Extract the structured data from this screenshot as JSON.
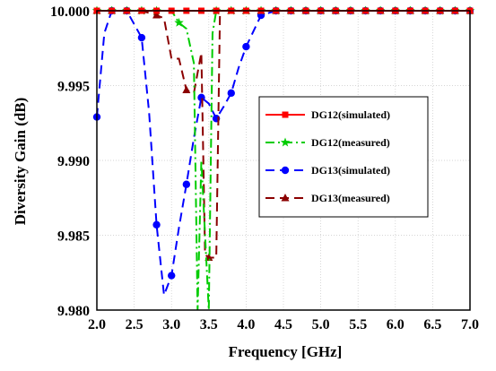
{
  "chart_data": {
    "type": "line",
    "xlabel": "Frequency [GHz]",
    "ylabel": "Diversity Gain (dB)",
    "xlim": [
      2.0,
      7.0
    ],
    "ylim": [
      9.98,
      10.0
    ],
    "xticks": [
      2.0,
      2.5,
      3.0,
      3.5,
      4.0,
      4.5,
      5.0,
      5.5,
      6.0,
      6.5,
      7.0
    ],
    "xtick_labels": [
      "2.0",
      "2.5",
      "3.0",
      "3.5",
      "4.0",
      "4.5",
      "5.0",
      "5.5",
      "6.0",
      "6.5",
      "7.0"
    ],
    "yticks": [
      9.98,
      9.985,
      9.99,
      9.995,
      10.0
    ],
    "ytick_labels": [
      "9.980",
      "9.985",
      "9.990",
      "9.995",
      "10.000"
    ],
    "grid": true,
    "legend_position": "right-middle",
    "series": [
      {
        "name": "DG12(simulated)",
        "color": "#ff0000",
        "dash": "solid",
        "marker": "square",
        "points": [
          [
            2.0,
            10.0
          ],
          [
            2.2,
            10.0
          ],
          [
            2.4,
            10.0
          ],
          [
            2.6,
            10.0
          ],
          [
            2.8,
            10.0
          ],
          [
            3.0,
            10.0
          ],
          [
            3.2,
            10.0
          ],
          [
            3.4,
            10.0
          ],
          [
            3.6,
            10.0
          ],
          [
            3.8,
            10.0
          ],
          [
            4.0,
            10.0
          ],
          [
            4.2,
            10.0
          ],
          [
            4.4,
            10.0
          ],
          [
            4.6,
            10.0
          ],
          [
            4.8,
            10.0
          ],
          [
            5.0,
            10.0
          ],
          [
            5.2,
            10.0
          ],
          [
            5.4,
            10.0
          ],
          [
            5.6,
            10.0
          ],
          [
            5.8,
            10.0
          ],
          [
            6.0,
            10.0
          ],
          [
            6.2,
            10.0
          ],
          [
            6.4,
            10.0
          ],
          [
            6.6,
            10.0
          ],
          [
            6.8,
            10.0
          ],
          [
            7.0,
            10.0
          ]
        ],
        "marker_points": [
          [
            2.0,
            10.0
          ],
          [
            2.2,
            10.0
          ],
          [
            2.4,
            10.0
          ],
          [
            2.6,
            10.0
          ],
          [
            2.8,
            10.0
          ],
          [
            3.0,
            10.0
          ],
          [
            3.2,
            10.0
          ],
          [
            3.4,
            10.0
          ],
          [
            3.6,
            10.0
          ],
          [
            3.8,
            10.0
          ],
          [
            4.0,
            10.0
          ],
          [
            4.2,
            10.0
          ],
          [
            4.4,
            10.0
          ],
          [
            4.6,
            10.0
          ],
          [
            4.8,
            10.0
          ],
          [
            5.0,
            10.0
          ],
          [
            5.2,
            10.0
          ],
          [
            5.4,
            10.0
          ],
          [
            5.6,
            10.0
          ],
          [
            5.8,
            10.0
          ],
          [
            6.0,
            10.0
          ],
          [
            6.2,
            10.0
          ],
          [
            6.4,
            10.0
          ],
          [
            6.6,
            10.0
          ],
          [
            6.8,
            10.0
          ],
          [
            7.0,
            10.0
          ]
        ]
      },
      {
        "name": "DG12(measured)",
        "color": "#00cc00",
        "dash": "dashdot",
        "marker": "star",
        "points": [
          [
            2.0,
            10.0
          ],
          [
            2.2,
            10.0
          ],
          [
            2.4,
            10.0
          ],
          [
            2.6,
            10.0
          ],
          [
            2.8,
            10.0
          ],
          [
            3.0,
            10.0
          ],
          [
            3.1,
            9.9992
          ],
          [
            3.2,
            9.9988
          ],
          [
            3.3,
            9.9965
          ],
          [
            3.35,
            9.98
          ],
          [
            3.4,
            9.99
          ],
          [
            3.5,
            9.98
          ],
          [
            3.55,
            9.9985
          ],
          [
            3.6,
            10.0
          ],
          [
            3.8,
            10.0
          ],
          [
            4.0,
            10.0
          ],
          [
            4.2,
            10.0
          ],
          [
            4.4,
            10.0
          ],
          [
            4.6,
            10.0
          ],
          [
            4.8,
            10.0
          ],
          [
            5.0,
            10.0
          ],
          [
            5.2,
            10.0
          ],
          [
            5.4,
            10.0
          ],
          [
            5.6,
            10.0
          ],
          [
            5.8,
            10.0
          ],
          [
            6.0,
            10.0
          ],
          [
            6.2,
            10.0
          ],
          [
            6.4,
            10.0
          ],
          [
            6.6,
            10.0
          ],
          [
            6.8,
            10.0
          ],
          [
            7.0,
            10.0
          ]
        ],
        "marker_points": [
          [
            2.0,
            10.0
          ],
          [
            2.2,
            10.0
          ],
          [
            2.4,
            10.0
          ],
          [
            2.6,
            10.0
          ],
          [
            2.8,
            10.0
          ],
          [
            3.1,
            9.9992
          ],
          [
            3.6,
            10.0
          ],
          [
            3.8,
            10.0
          ],
          [
            4.0,
            10.0
          ],
          [
            4.2,
            10.0
          ],
          [
            4.4,
            10.0
          ],
          [
            4.6,
            10.0
          ],
          [
            4.8,
            10.0
          ],
          [
            5.0,
            10.0
          ],
          [
            5.2,
            10.0
          ],
          [
            5.4,
            10.0
          ],
          [
            5.6,
            10.0
          ],
          [
            5.8,
            10.0
          ],
          [
            6.0,
            10.0
          ],
          [
            6.2,
            10.0
          ],
          [
            6.4,
            10.0
          ],
          [
            6.6,
            10.0
          ],
          [
            6.8,
            10.0
          ],
          [
            7.0,
            10.0
          ]
        ]
      },
      {
        "name": "DG13(simulated)",
        "color": "#0000ff",
        "dash": "dashed",
        "marker": "circle",
        "points": [
          [
            2.0,
            9.9929
          ],
          [
            2.1,
            9.9985
          ],
          [
            2.2,
            10.0
          ],
          [
            2.4,
            10.0
          ],
          [
            2.6,
            9.9982
          ],
          [
            2.7,
            9.9932
          ],
          [
            2.8,
            9.9857
          ],
          [
            2.9,
            9.981
          ],
          [
            3.0,
            9.9823
          ],
          [
            3.1,
            9.9855
          ],
          [
            3.2,
            9.9884
          ],
          [
            3.3,
            9.9915
          ],
          [
            3.4,
            9.9942
          ],
          [
            3.5,
            9.9938
          ],
          [
            3.6,
            9.9928
          ],
          [
            3.7,
            9.9936
          ],
          [
            3.8,
            9.9945
          ],
          [
            3.9,
            9.9962
          ],
          [
            4.0,
            9.9976
          ],
          [
            4.2,
            9.9997
          ],
          [
            4.4,
            10.0
          ],
          [
            4.6,
            10.0
          ],
          [
            4.8,
            10.0
          ],
          [
            5.0,
            10.0
          ],
          [
            5.2,
            10.0
          ],
          [
            5.4,
            10.0
          ],
          [
            5.6,
            10.0
          ],
          [
            5.8,
            10.0
          ],
          [
            6.0,
            10.0
          ],
          [
            6.2,
            10.0
          ],
          [
            6.4,
            10.0
          ],
          [
            6.6,
            10.0
          ],
          [
            6.8,
            10.0
          ],
          [
            7.0,
            10.0
          ]
        ],
        "marker_points": [
          [
            2.0,
            9.9929
          ],
          [
            2.2,
            10.0
          ],
          [
            2.4,
            10.0
          ],
          [
            2.6,
            9.9982
          ],
          [
            2.8,
            9.9857
          ],
          [
            3.0,
            9.9823
          ],
          [
            3.2,
            9.9884
          ],
          [
            3.4,
            9.9942
          ],
          [
            3.6,
            9.9928
          ],
          [
            3.8,
            9.9945
          ],
          [
            4.0,
            9.9976
          ],
          [
            4.2,
            9.9997
          ],
          [
            4.4,
            10.0
          ],
          [
            4.6,
            10.0
          ],
          [
            4.8,
            10.0
          ],
          [
            5.0,
            10.0
          ],
          [
            5.2,
            10.0
          ],
          [
            5.4,
            10.0
          ],
          [
            5.6,
            10.0
          ],
          [
            5.8,
            10.0
          ],
          [
            6.0,
            10.0
          ],
          [
            6.2,
            10.0
          ],
          [
            6.4,
            10.0
          ],
          [
            6.6,
            10.0
          ],
          [
            6.8,
            10.0
          ],
          [
            7.0,
            10.0
          ]
        ]
      },
      {
        "name": "DG13(measured)",
        "color": "#8b0000",
        "dash": "dashed",
        "marker": "triangle",
        "points": [
          [
            2.0,
            10.0
          ],
          [
            2.2,
            10.0
          ],
          [
            2.4,
            10.0
          ],
          [
            2.6,
            10.0
          ],
          [
            2.8,
            9.9997
          ],
          [
            2.9,
            9.9995
          ],
          [
            3.0,
            9.9968
          ],
          [
            3.1,
            9.9968
          ],
          [
            3.2,
            9.9947
          ],
          [
            3.3,
            9.9945
          ],
          [
            3.4,
            9.9972
          ],
          [
            3.45,
            9.9837
          ],
          [
            3.5,
            9.9835
          ],
          [
            3.6,
            9.9835
          ],
          [
            3.65,
            10.0
          ],
          [
            3.8,
            10.0
          ],
          [
            4.0,
            10.0
          ],
          [
            4.2,
            10.0
          ],
          [
            4.4,
            10.0
          ],
          [
            4.6,
            10.0
          ],
          [
            4.8,
            10.0
          ],
          [
            5.0,
            10.0
          ],
          [
            5.2,
            10.0
          ],
          [
            5.4,
            10.0
          ],
          [
            5.6,
            10.0
          ],
          [
            5.8,
            10.0
          ],
          [
            6.0,
            10.0
          ],
          [
            6.2,
            10.0
          ],
          [
            6.4,
            10.0
          ],
          [
            6.6,
            10.0
          ],
          [
            6.8,
            10.0
          ],
          [
            7.0,
            10.0
          ]
        ],
        "marker_points": [
          [
            2.0,
            10.0
          ],
          [
            2.2,
            10.0
          ],
          [
            2.4,
            10.0
          ],
          [
            2.6,
            10.0
          ],
          [
            2.8,
            9.9997
          ],
          [
            3.2,
            9.9947
          ],
          [
            3.5,
            9.9835
          ],
          [
            3.8,
            10.0
          ],
          [
            4.0,
            10.0
          ],
          [
            4.2,
            10.0
          ],
          [
            4.4,
            10.0
          ],
          [
            4.6,
            10.0
          ],
          [
            4.8,
            10.0
          ],
          [
            5.0,
            10.0
          ],
          [
            5.2,
            10.0
          ],
          [
            5.4,
            10.0
          ],
          [
            5.6,
            10.0
          ],
          [
            5.8,
            10.0
          ],
          [
            6.0,
            10.0
          ],
          [
            6.2,
            10.0
          ],
          [
            6.4,
            10.0
          ],
          [
            6.6,
            10.0
          ],
          [
            6.8,
            10.0
          ],
          [
            7.0,
            10.0
          ]
        ]
      }
    ]
  }
}
